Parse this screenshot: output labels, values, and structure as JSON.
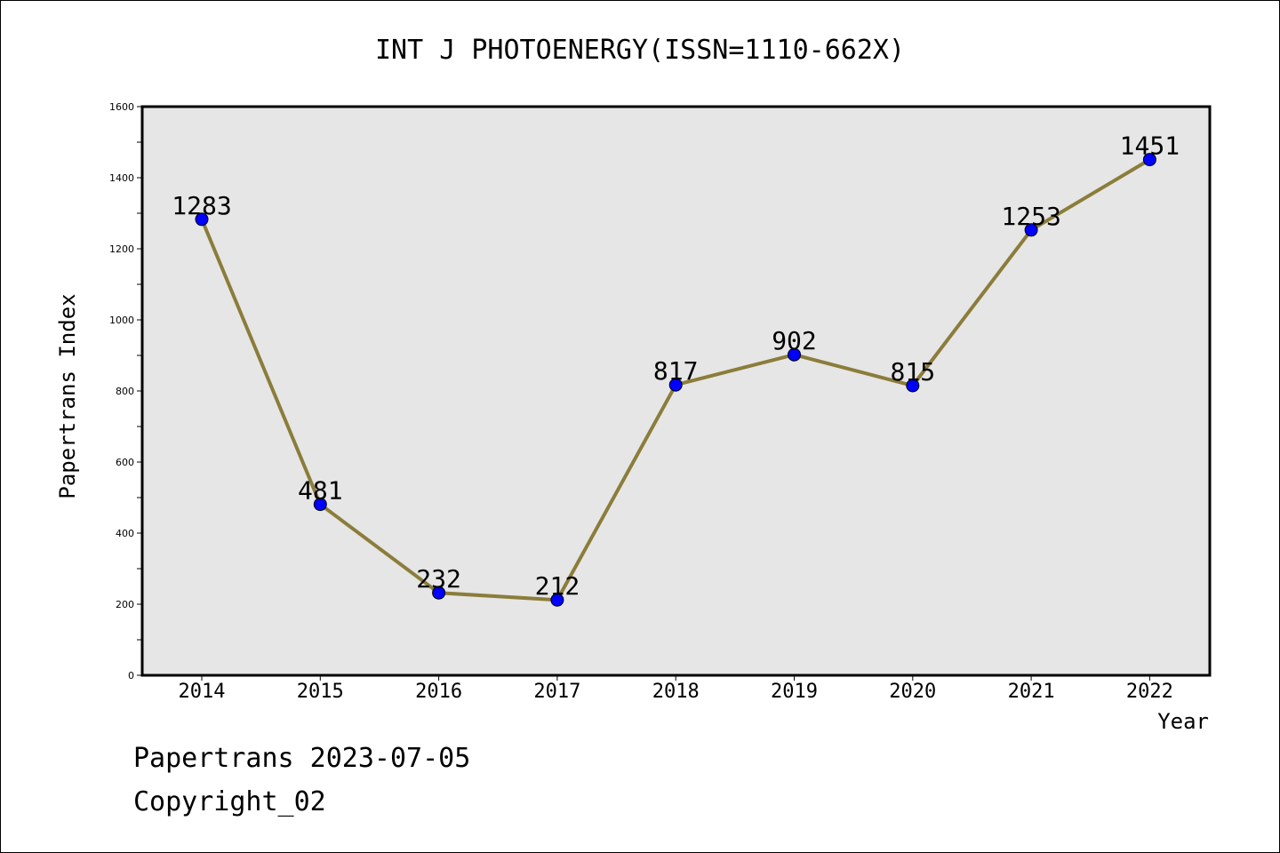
{
  "chart_data": {
    "type": "line",
    "title": "INT J PHOTOENERGY(ISSN=1110-662X)",
    "xlabel": "Year",
    "ylabel": "Papertrans Index",
    "categories": [
      "2014",
      "2015",
      "2016",
      "2017",
      "2018",
      "2019",
      "2020",
      "2021",
      "2022"
    ],
    "values": [
      1283,
      481,
      232,
      212,
      817,
      902,
      815,
      1253,
      1451
    ],
    "data_labels": [
      "1283",
      "481",
      "232",
      "212",
      "817",
      "902",
      "815",
      "1253",
      "1451"
    ],
    "ylim": [
      0,
      1600
    ],
    "yticks": [
      "0",
      "200",
      "400",
      "600",
      "800",
      "1000",
      "1200",
      "1400",
      "1600"
    ],
    "grid": false,
    "line_color": "#8B7D3A",
    "marker_color": "#0000FF",
    "plot_background": "#E6E6E6"
  },
  "footer": {
    "line1": "Papertrans 2023-07-05",
    "line2": "Copyright_02"
  }
}
